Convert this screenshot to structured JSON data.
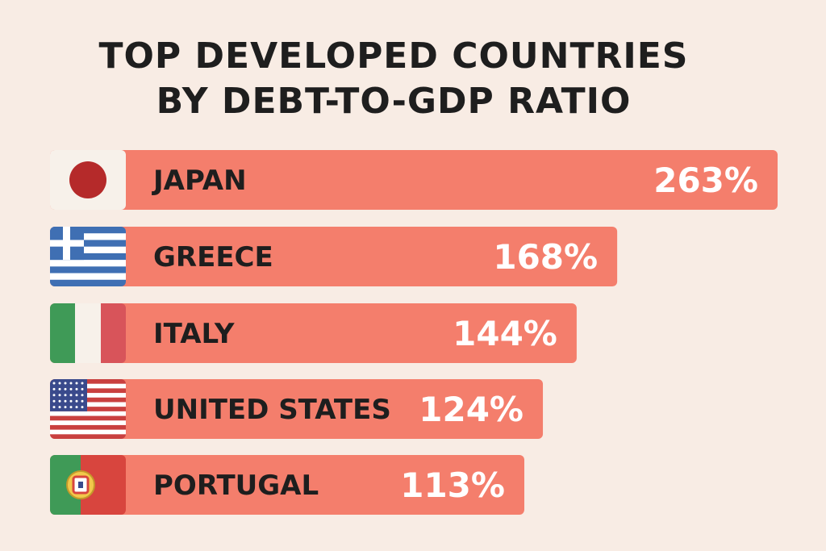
{
  "title_lines": [
    "TOP DEVELOPED COUNTRIES",
    "BY DEBT-TO-GDP RATIO"
  ],
  "colors": {
    "background": "#f8ece4",
    "bar": "#f47e6c",
    "title": "#1e1e1e"
  },
  "chart_data": {
    "type": "bar",
    "orientation": "horizontal",
    "title": "TOP DEVELOPED COUNTRIES BY DEBT-TO-GDP RATIO",
    "unit": "%",
    "categories": [
      "JAPAN",
      "GREECE",
      "ITALY",
      "UNITED STATES",
      "PORTUGAL"
    ],
    "values": [
      263,
      168,
      144,
      124,
      113
    ],
    "value_labels": [
      "263%",
      "168%",
      "144%",
      "124%",
      "113%"
    ],
    "flags": [
      "japan-flag-icon",
      "greece-flag-icon",
      "italy-flag-icon",
      "usa-flag-icon",
      "portugal-flag-icon"
    ],
    "grid": false,
    "legend": "none"
  }
}
